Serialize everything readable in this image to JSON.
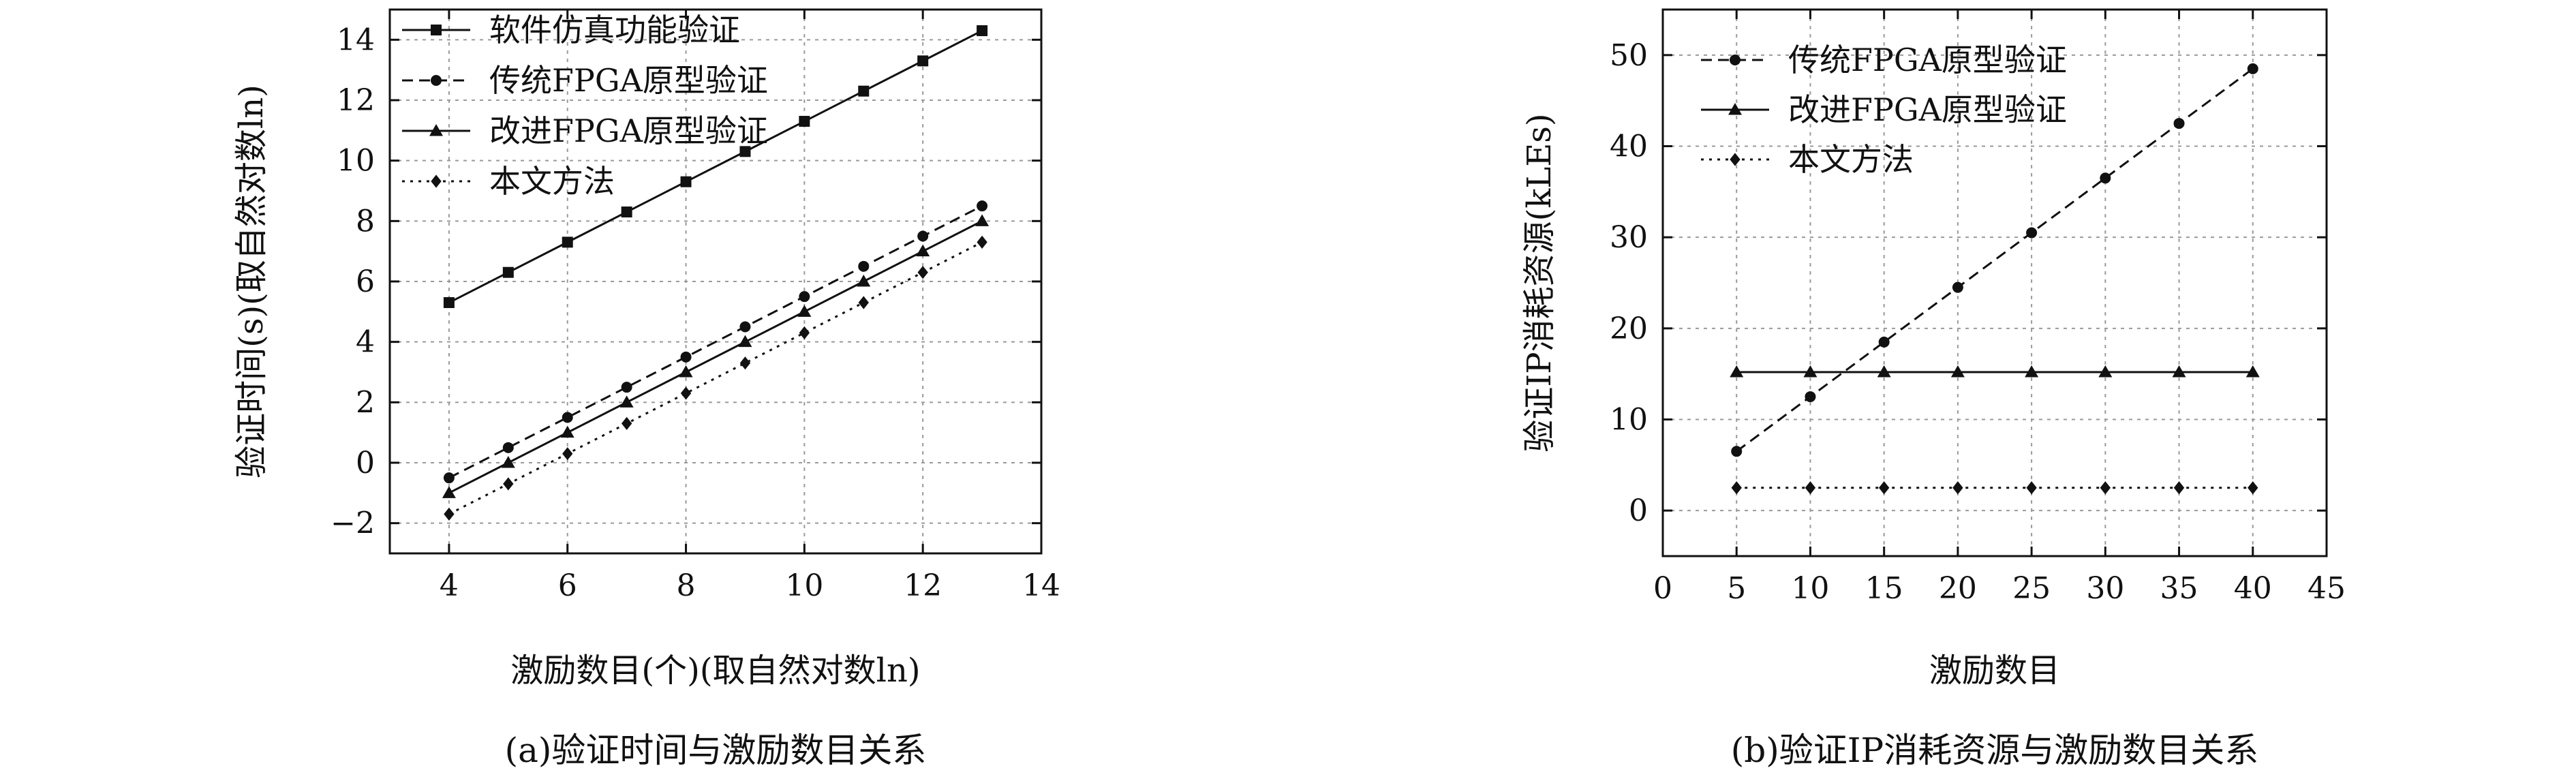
{
  "chart_data": [
    {
      "type": "line",
      "caption": "(a)验证时间与激励数目关系",
      "xlabel": "激励数目(个)(取自然对数ln)",
      "ylabel": "验证时间(s)(取自然对数ln)",
      "xlim": [
        3,
        14
      ],
      "ylim": [
        -3,
        15
      ],
      "xticks": [
        4,
        6,
        8,
        10,
        12,
        14
      ],
      "yticks": [
        -2,
        0,
        2,
        4,
        6,
        8,
        10,
        12,
        14
      ],
      "xtick_labels": [
        "4",
        "6",
        "8",
        "10",
        "12",
        "14"
      ],
      "ytick_labels": [
        "−2",
        "0",
        "2",
        "4",
        "6",
        "8",
        "10",
        "12",
        "14"
      ],
      "grid": true,
      "legend_position": "top-left",
      "x": [
        4,
        5,
        6,
        7,
        8,
        9,
        10,
        11,
        12,
        13
      ],
      "series": [
        {
          "name": "软件仿真功能验证",
          "marker": "square",
          "dash": "solid",
          "values": [
            5.3,
            6.3,
            7.3,
            8.3,
            9.3,
            10.3,
            11.3,
            12.3,
            13.3,
            14.3
          ]
        },
        {
          "name": "传统FPGA原型验证",
          "marker": "circle",
          "dash": "dashed",
          "values": [
            -0.5,
            0.5,
            1.5,
            2.5,
            3.5,
            4.5,
            5.5,
            6.5,
            7.5,
            8.5
          ]
        },
        {
          "name": "改进FPGA原型验证",
          "marker": "triangle",
          "dash": "solid",
          "values": [
            -1.0,
            0.0,
            1.0,
            2.0,
            3.0,
            4.0,
            5.0,
            6.0,
            7.0,
            8.0
          ]
        },
        {
          "name": "本文方法",
          "marker": "diamond",
          "dash": "dotted",
          "values": [
            -1.7,
            -0.7,
            0.3,
            1.3,
            2.3,
            3.3,
            4.3,
            5.3,
            6.3,
            7.3
          ]
        }
      ]
    },
    {
      "type": "line",
      "caption": "(b)验证IP消耗资源与激励数目关系",
      "xlabel": "激励数目",
      "ylabel": "验证IP消耗资源(kLEs)",
      "xlim": [
        0,
        45
      ],
      "ylim": [
        -5,
        55
      ],
      "xticks": [
        0,
        5,
        10,
        15,
        20,
        25,
        30,
        35,
        40,
        45
      ],
      "yticks": [
        0,
        10,
        20,
        30,
        40,
        50
      ],
      "xtick_labels": [
        "0",
        "5",
        "10",
        "15",
        "20",
        "25",
        "30",
        "35",
        "40",
        "45"
      ],
      "ytick_labels": [
        "0",
        "10",
        "20",
        "30",
        "40",
        "50"
      ],
      "grid": true,
      "legend_position": "top-left",
      "x": [
        5,
        10,
        15,
        20,
        25,
        30,
        35,
        40
      ],
      "series": [
        {
          "name": "传统FPGA原型验证",
          "marker": "circle",
          "dash": "dashed",
          "values": [
            6.5,
            12.5,
            18.5,
            24.5,
            30.5,
            36.5,
            42.5,
            48.5
          ]
        },
        {
          "name": "改进FPGA原型验证",
          "marker": "triangle",
          "dash": "solid",
          "values": [
            15.2,
            15.2,
            15.2,
            15.2,
            15.2,
            15.2,
            15.2,
            15.2
          ]
        },
        {
          "name": "本文方法",
          "marker": "diamond",
          "dash": "dotted",
          "values": [
            2.5,
            2.5,
            2.5,
            2.5,
            2.5,
            2.5,
            2.5,
            2.5
          ]
        }
      ]
    }
  ]
}
